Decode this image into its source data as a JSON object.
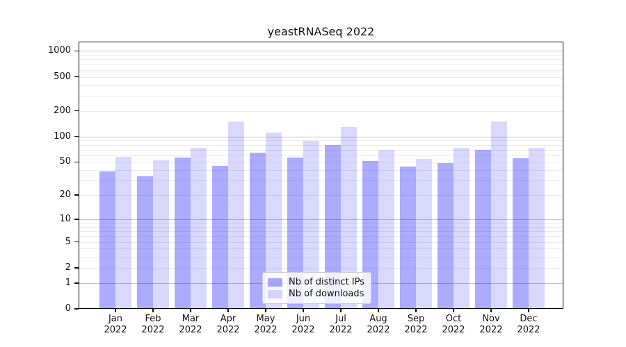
{
  "chart_data": {
    "type": "bar",
    "title": "yeastRNASeq 2022",
    "x_tick_year": "2022",
    "categories": [
      "Jan",
      "Feb",
      "Mar",
      "Apr",
      "May",
      "Jun",
      "Jul",
      "Aug",
      "Sep",
      "Oct",
      "Nov",
      "Dec"
    ],
    "series": [
      {
        "name": "Nb of distinct IPs",
        "color": "rgba(0,0,255,0.33)",
        "values": [
          39,
          34,
          57,
          45,
          65,
          57,
          80,
          51,
          44,
          49,
          70,
          56
        ]
      },
      {
        "name": "Nb of downloads",
        "color": "rgba(0,0,255,0.15)",
        "values": [
          58,
          52,
          74,
          150,
          112,
          89,
          130,
          70,
          54,
          73,
          150,
          74
        ]
      }
    ],
    "y_scale": "log1p",
    "ylim": [
      0,
      1280
    ],
    "y_ticks": [
      1000,
      500,
      200,
      100,
      50,
      20,
      10,
      5,
      2,
      1,
      0
    ],
    "y_major_gridlines": [
      1,
      10,
      100,
      1000
    ],
    "y_minor_gridlines": [
      2,
      3,
      4,
      5,
      6,
      7,
      8,
      9,
      20,
      30,
      40,
      50,
      60,
      70,
      80,
      90,
      200,
      300,
      400,
      500,
      600,
      700,
      800,
      900
    ],
    "grid": true,
    "legend_position": "lower center"
  }
}
